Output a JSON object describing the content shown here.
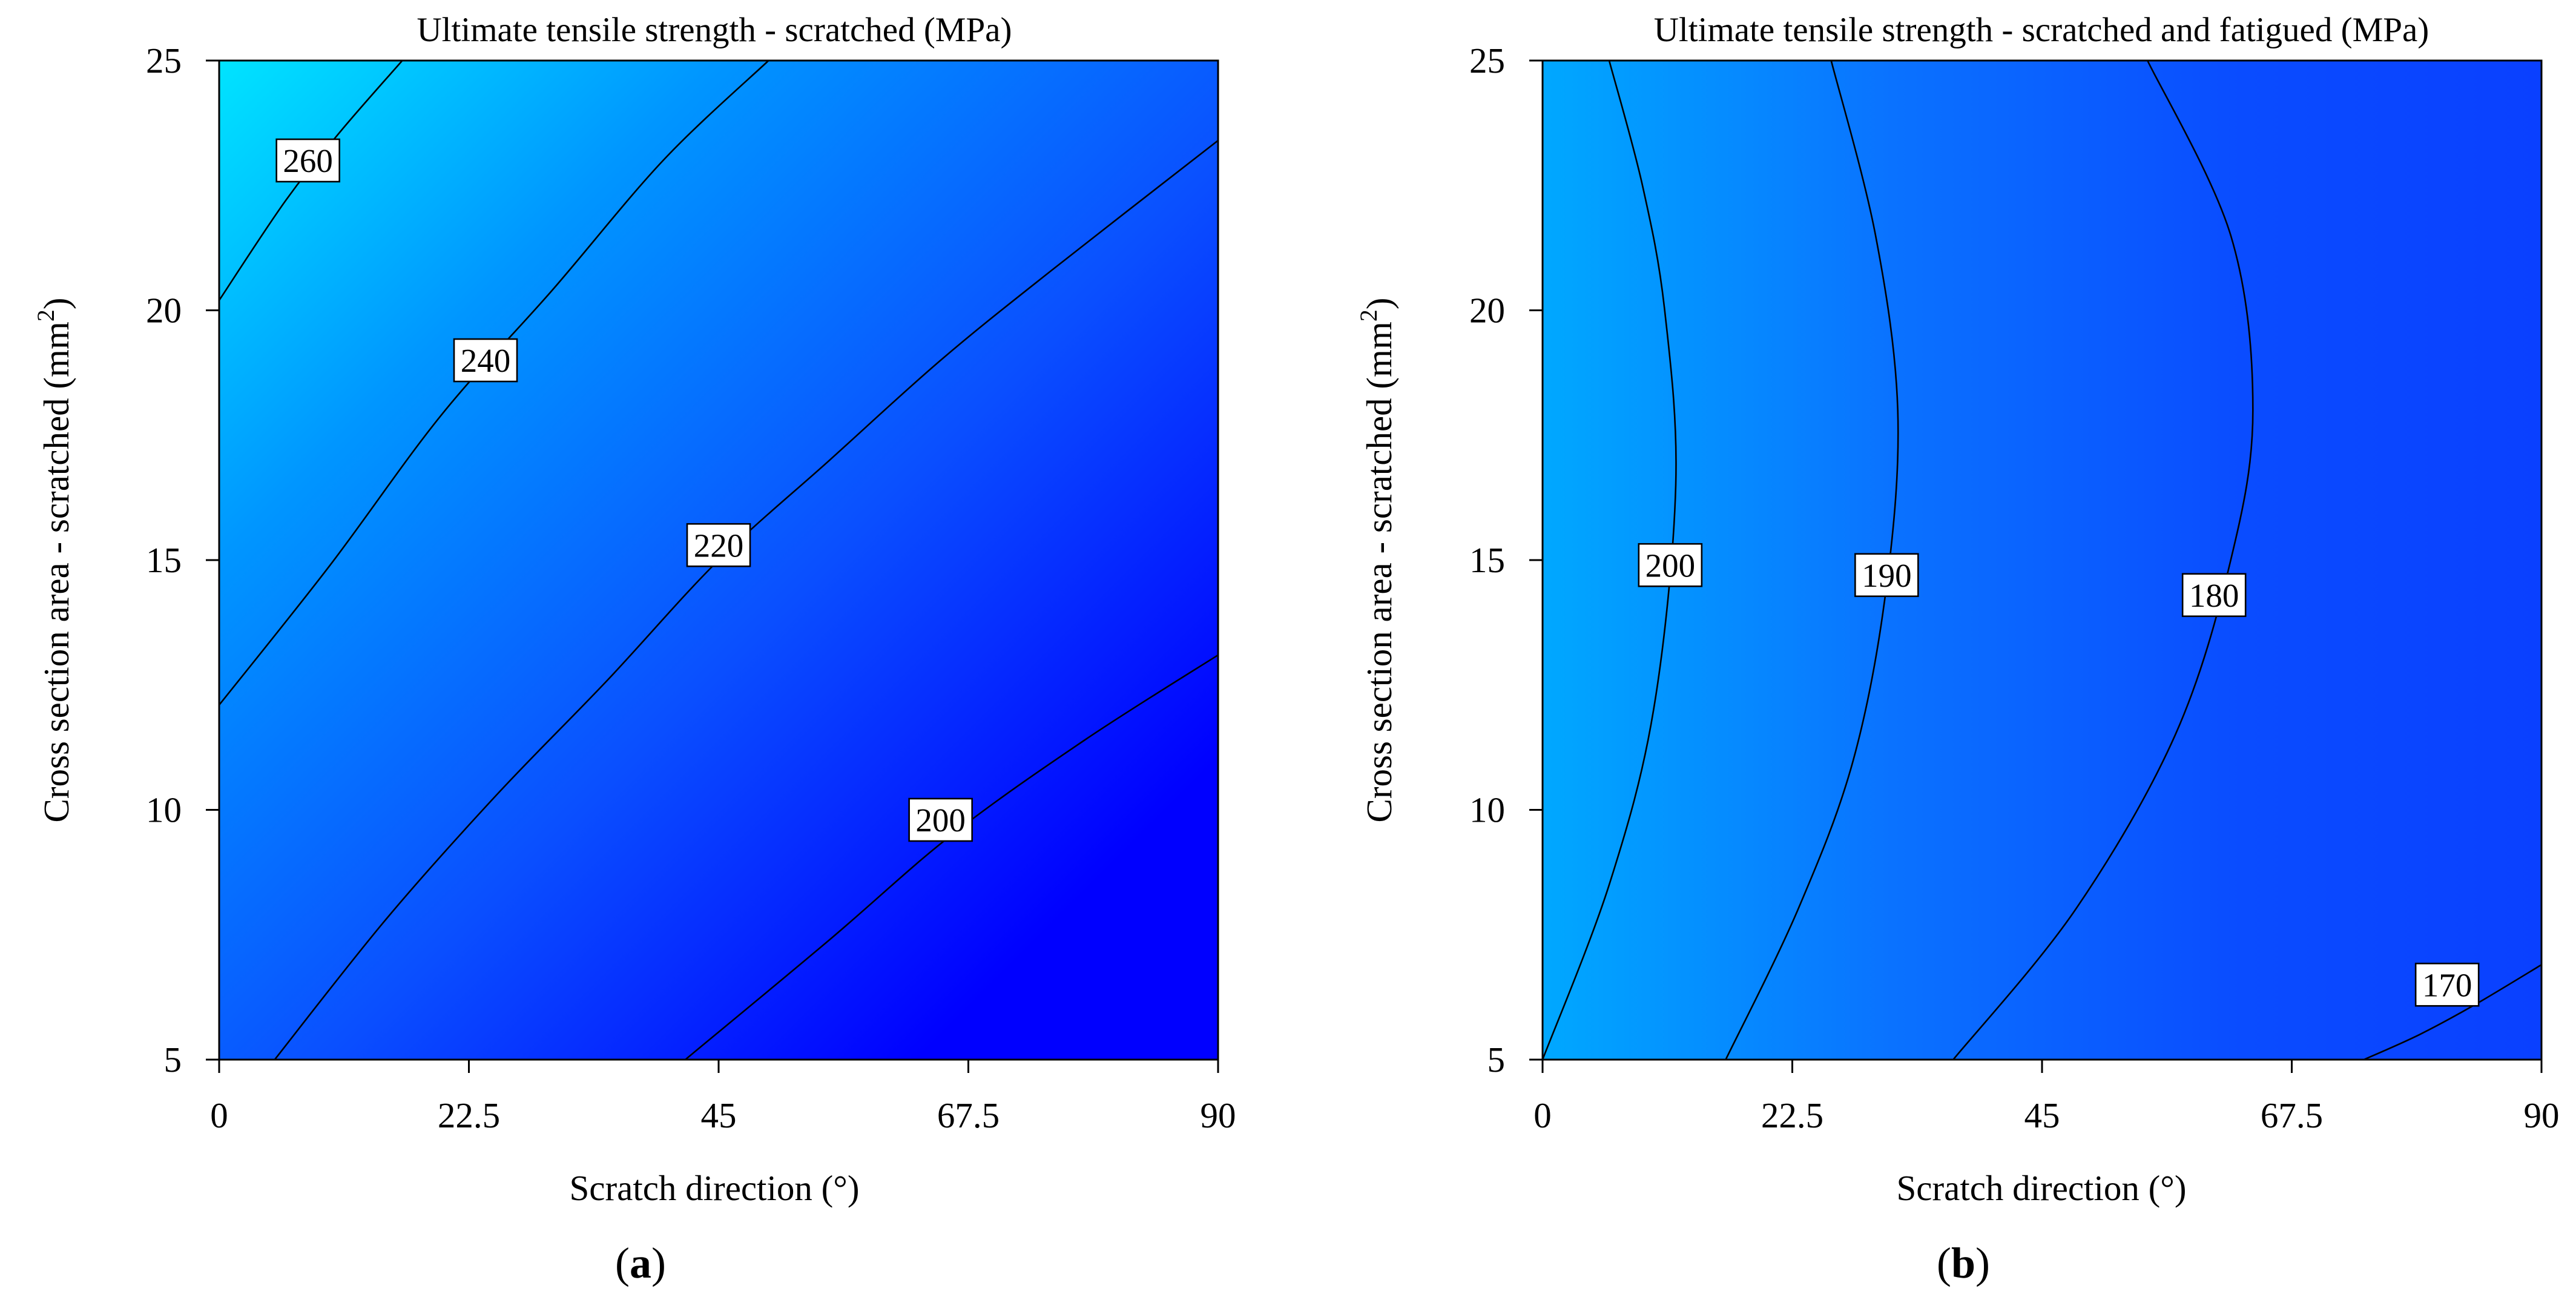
{
  "colors": {
    "low": "#0000ff",
    "high": "#00e0ff",
    "mid": "#0a55ff"
  },
  "chart_data": [
    {
      "id": "a",
      "type": "contour",
      "title": "Ultimate tensile strength - scratched (MPa)",
      "xlabel": "Scratch direction (°)",
      "ylabel_prefix": "Cross section area - scratched (mm",
      "ylabel_sup": "2",
      "ylabel_suffix": ")",
      "xlim": [
        0,
        90
      ],
      "ylim": [
        5,
        25
      ],
      "xticks": [
        0,
        22.5,
        45,
        67.5,
        90
      ],
      "xticklabels": [
        "0",
        "22.5",
        "45",
        "67.5",
        "90"
      ],
      "yticks": [
        5,
        10,
        15,
        20,
        25
      ],
      "yticklabels": [
        "5",
        "10",
        "15",
        "20",
        "25"
      ],
      "panel_label": [
        "(",
        "a",
        ")"
      ],
      "field_range": [
        185,
        275
      ],
      "contours": [
        {
          "level": 260,
          "label": "260",
          "points": [
            [
              0,
              20.2
            ],
            [
              6,
              22.2
            ],
            [
              11,
              23.6
            ],
            [
              16.5,
              25
            ]
          ],
          "label_at": [
            8,
            23
          ]
        },
        {
          "level": 240,
          "label": "240",
          "points": [
            [
              0,
              12.1
            ],
            [
              10,
              14.9
            ],
            [
              20,
              17.9
            ],
            [
              30,
              20.4
            ],
            [
              40,
              23.0
            ],
            [
              49.5,
              25
            ]
          ],
          "label_at": [
            24,
            19
          ]
        },
        {
          "level": 220,
          "label": "220",
          "points": [
            [
              5,
              5
            ],
            [
              15,
              7.8
            ],
            [
              25,
              10.3
            ],
            [
              35,
              12.6
            ],
            [
              45,
              15.0
            ],
            [
              55,
              17.0
            ],
            [
              65,
              19.0
            ],
            [
              75,
              20.8
            ],
            [
              90,
              23.4
            ]
          ],
          "label_at": [
            45,
            15.3
          ]
        },
        {
          "level": 200,
          "label": "200",
          "points": [
            [
              42,
              5
            ],
            [
              55,
              7.4
            ],
            [
              66,
              9.5
            ],
            [
              78,
              11.4
            ],
            [
              90,
              13.1
            ]
          ],
          "label_at": [
            65,
            9.8
          ]
        }
      ]
    },
    {
      "id": "b",
      "type": "contour",
      "title": "Ultimate tensile strength - scratched and fatigued (MPa)",
      "xlabel": "Scratch direction (°)",
      "ylabel_prefix": "Cross section area - scratched (mm",
      "ylabel_sup": "2",
      "ylabel_suffix": ")",
      "xlim": [
        0,
        90
      ],
      "ylim": [
        5,
        25
      ],
      "xticks": [
        0,
        22.5,
        45,
        67.5,
        90
      ],
      "xticklabels": [
        "0",
        "22.5",
        "45",
        "67.5",
        "90"
      ],
      "yticks": [
        5,
        10,
        15,
        20,
        25
      ],
      "yticklabels": [
        "5",
        "10",
        "15",
        "20",
        "25"
      ],
      "panel_label": [
        "(",
        "b",
        ")"
      ],
      "field_range": [
        165,
        212
      ],
      "contours": [
        {
          "level": 200,
          "label": "200",
          "points": [
            [
              0,
              5
            ],
            [
              6,
              8.5
            ],
            [
              10,
              12
            ],
            [
              12,
              16.5
            ],
            [
              11,
              20
            ],
            [
              9,
              22.5
            ],
            [
              6,
              25
            ]
          ],
          "label_at": [
            11.5,
            14.9
          ]
        },
        {
          "level": 190,
          "label": "190",
          "points": [
            [
              16.5,
              5
            ],
            [
              23,
              8
            ],
            [
              28,
              11
            ],
            [
              31,
              14.5
            ],
            [
              32,
              18
            ],
            [
              30,
              21.5
            ],
            [
              26,
              25
            ]
          ],
          "label_at": [
            31,
            14.7
          ]
        },
        {
          "level": 180,
          "label": "180",
          "points": [
            [
              37,
              5
            ],
            [
              48,
              8
            ],
            [
              57,
              11.5
            ],
            [
              62,
              15
            ],
            [
              64,
              18
            ],
            [
              62,
              21.5
            ],
            [
              54.5,
              25
            ]
          ],
          "label_at": [
            60.5,
            14.3
          ]
        },
        {
          "level": 170,
          "label": "170",
          "points": [
            [
              74,
              5
            ],
            [
              79,
              5.5
            ],
            [
              84,
              6.1
            ],
            [
              90,
              6.9
            ]
          ],
          "label_at": [
            81.5,
            6.5
          ]
        }
      ]
    }
  ]
}
